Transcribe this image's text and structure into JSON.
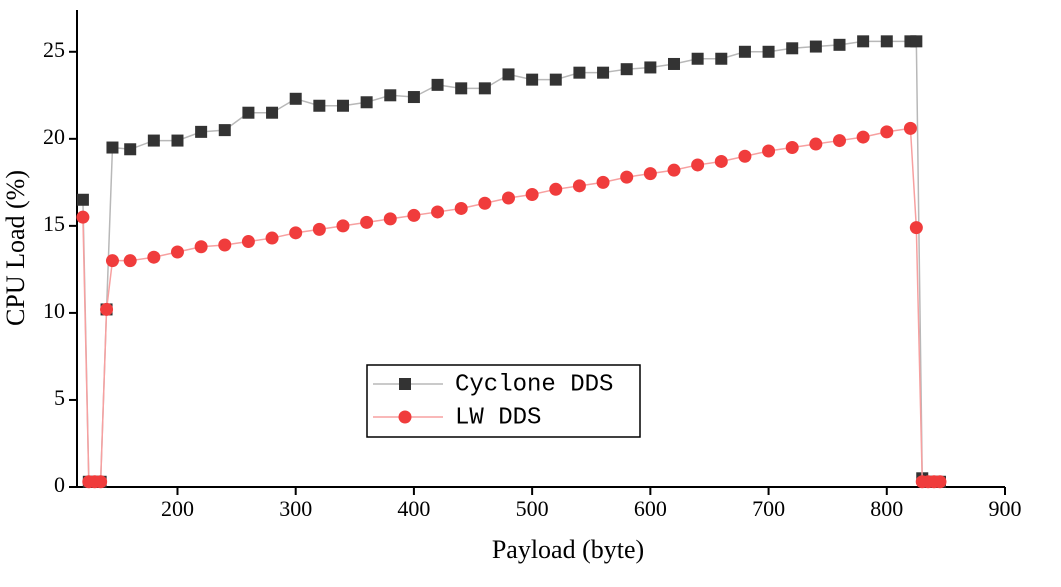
{
  "chart_data": {
    "type": "line",
    "xlabel": "Payload  (byte)",
    "ylabel": "CPU Load (%)",
    "x": [
      120,
      125,
      130,
      135,
      140,
      145,
      160,
      180,
      200,
      220,
      240,
      260,
      280,
      300,
      320,
      340,
      360,
      380,
      400,
      420,
      440,
      460,
      480,
      500,
      520,
      540,
      560,
      580,
      600,
      620,
      640,
      660,
      680,
      700,
      720,
      740,
      760,
      780,
      800,
      820,
      825,
      830,
      835,
      840,
      845
    ],
    "series": [
      {
        "name": "Cyclone DDS",
        "color": "#333333",
        "marker": "square",
        "values": [
          16.5,
          0.3,
          0.3,
          0.3,
          10.2,
          19.5,
          19.4,
          19.9,
          19.9,
          20.4,
          20.5,
          21.5,
          21.5,
          22.3,
          21.9,
          21.9,
          22.1,
          22.5,
          22.4,
          23.1,
          22.9,
          22.9,
          23.7,
          23.4,
          23.4,
          23.8,
          23.8,
          24.0,
          24.1,
          24.3,
          24.6,
          24.6,
          25.0,
          25.0,
          25.2,
          25.3,
          25.4,
          25.6,
          25.6,
          25.6,
          25.6,
          0.5,
          0.3,
          0.3,
          0.3
        ]
      },
      {
        "name": "LW DDS",
        "color": "#f03c3c",
        "marker": "circle",
        "values": [
          15.5,
          0.3,
          0.3,
          0.3,
          10.2,
          13.0,
          13.0,
          13.2,
          13.5,
          13.8,
          13.9,
          14.1,
          14.3,
          14.6,
          14.8,
          15.0,
          15.2,
          15.4,
          15.6,
          15.8,
          16.0,
          16.3,
          16.6,
          16.8,
          17.1,
          17.3,
          17.5,
          17.8,
          18.0,
          18.2,
          18.5,
          18.7,
          19.0,
          19.3,
          19.5,
          19.7,
          19.9,
          20.1,
          20.4,
          20.6,
          14.9,
          0.3,
          0.3,
          0.3,
          0.3
        ]
      }
    ],
    "xlim": [
      115,
      900
    ],
    "xticks": [
      200,
      300,
      400,
      500,
      600,
      700,
      800,
      900
    ],
    "ylim": [
      0,
      27.4
    ],
    "yticks": [
      0,
      5,
      10,
      15,
      20,
      25
    ],
    "legend": "center",
    "grid": false
  }
}
